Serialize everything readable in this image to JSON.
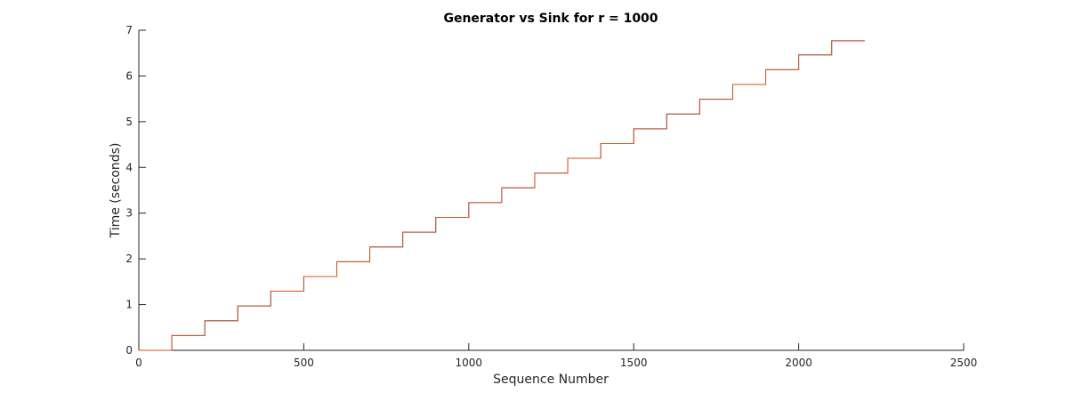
{
  "chart_data": {
    "type": "line",
    "title": "Generator vs Sink for r = 1000",
    "xlabel": "Sequence Number",
    "ylabel": "Time (seconds)",
    "xlim": [
      0,
      2500
    ],
    "ylim": [
      0,
      7
    ],
    "x_ticks": [
      0,
      500,
      1000,
      1500,
      2000,
      2500
    ],
    "y_ticks": [
      0,
      1,
      2,
      3,
      4,
      5,
      6,
      7
    ],
    "grid": false,
    "x_end": 2200,
    "step_width": 100,
    "series": [
      {
        "color": "#0072bd",
        "step_levels": [
          0,
          0.323,
          0.646,
          0.969,
          1.292,
          1.615,
          1.938,
          2.261,
          2.584,
          2.907,
          3.23,
          3.553,
          3.876,
          4.199,
          4.522,
          4.845,
          5.168,
          5.491,
          5.814,
          6.137,
          6.46,
          6.77
        ]
      },
      {
        "color": "#d95319",
        "step_levels": [
          0,
          0.323,
          0.646,
          0.969,
          1.292,
          1.615,
          1.938,
          2.261,
          2.584,
          2.907,
          3.23,
          3.553,
          3.876,
          4.199,
          4.522,
          4.845,
          5.168,
          5.491,
          5.814,
          6.137,
          6.46,
          6.77
        ]
      }
    ]
  }
}
